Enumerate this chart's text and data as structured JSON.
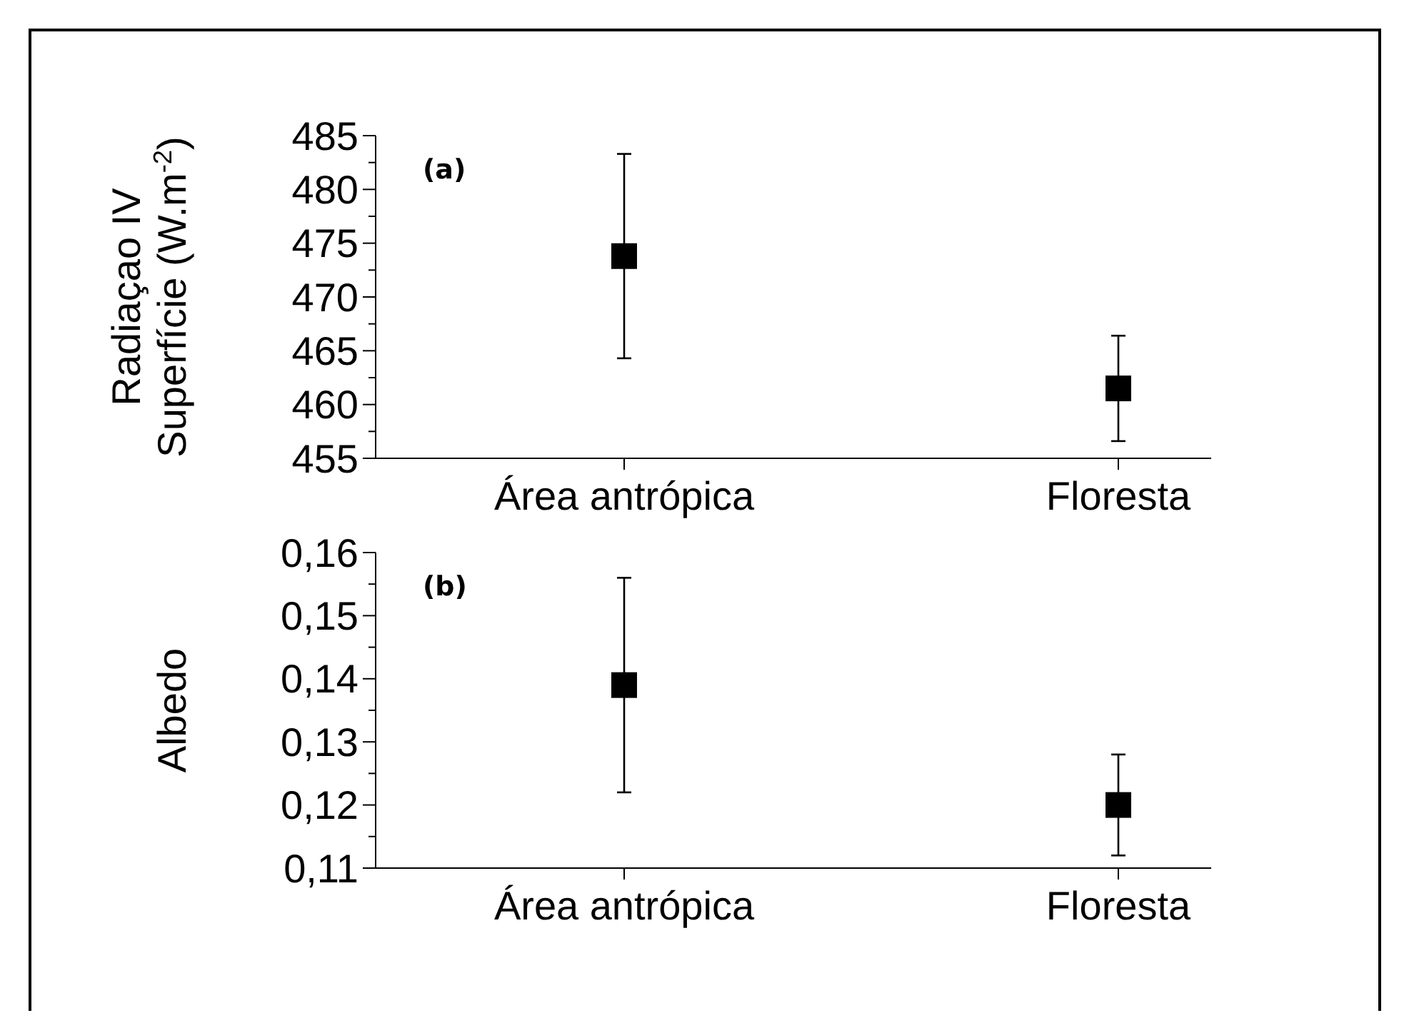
{
  "chart_data": [
    {
      "type": "scatter",
      "ylabel": "Radiaçao IV\nSuperfície (W.m$^{-2}$)",
      "categories": [
        "Área antrópica",
        "Floresta"
      ],
      "marker": "square",
      "grid": false,
      "annotations": [
        "(a)"
      ],
      "series": [
        {
          "color": "#000000",
          "values": [
            473.8,
            461.5
          ],
          "errors": [
            [
              464.3,
              483.3
            ],
            [
              456.6,
              466.4
            ]
          ]
        }
      ],
      "ylim": [
        455,
        485
      ],
      "yticks": [
        455,
        {
          "value": 457.5,
          "label": null
        },
        460,
        {
          "value": 462.5,
          "label": null
        },
        465,
        {
          "value": 467.5,
          "label": null
        },
        470,
        {
          "value": 472.5,
          "label": null
        },
        475,
        {
          "value": 477.5,
          "label": null
        },
        480,
        {
          "value": 482.5,
          "label": null
        },
        485
      ]
    },
    {
      "type": "scatter",
      "ylabel": "Albedo",
      "categories": [
        "Área antrópica",
        "Floresta"
      ],
      "marker": "square",
      "grid": false,
      "annotations": [
        "(b)"
      ],
      "series": [
        {
          "color": "#000000",
          "values": [
            0.139,
            0.12
          ],
          "errors": [
            [
              0.122,
              0.156
            ],
            [
              0.112,
              0.128
            ]
          ]
        }
      ],
      "ylim": [
        0.11,
        0.16
      ],
      "yticks": [
        {
          "value": 0.11,
          "label": "0,11"
        },
        {
          "value": 0.115,
          "label": null
        },
        {
          "value": 0.12,
          "label": "0,12"
        },
        {
          "value": 0.125,
          "label": null
        },
        {
          "value": 0.13,
          "label": "0,13"
        },
        {
          "value": 0.135,
          "label": null
        },
        {
          "value": 0.14,
          "label": "0,14"
        },
        {
          "value": 0.145,
          "label": null
        },
        {
          "value": 0.15,
          "label": "0,15"
        },
        {
          "value": 0.155,
          "label": null
        },
        {
          "value": 0.16,
          "label": "0,16"
        }
      ]
    }
  ]
}
